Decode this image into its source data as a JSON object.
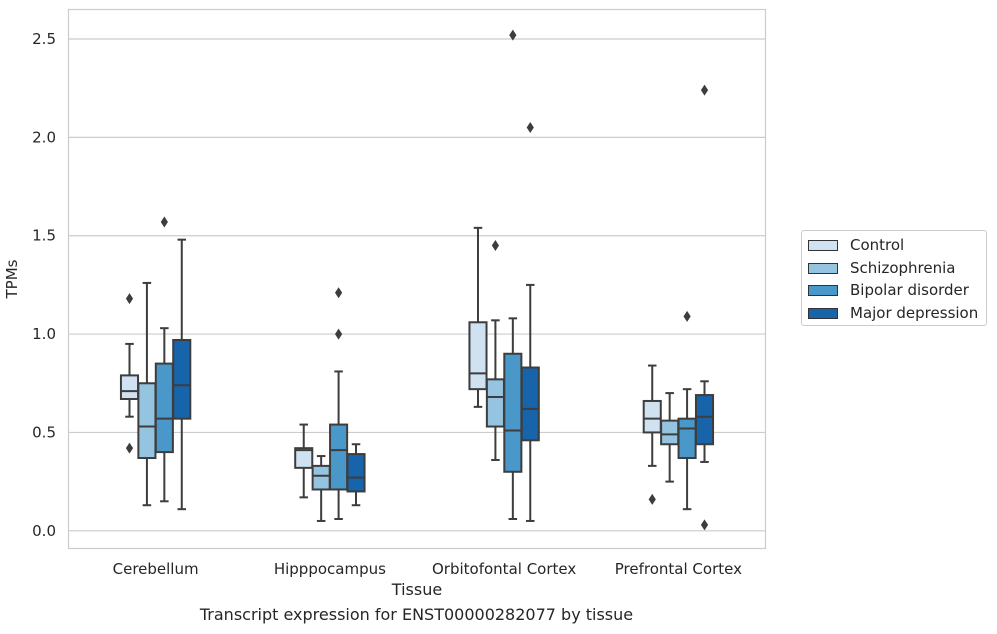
{
  "chart_data": {
    "type": "box",
    "xlabel": "Tissue",
    "ylabel": "TPMs",
    "ylim": [
      -0.09,
      2.65
    ],
    "yticks": [
      "0.0",
      "0.5",
      "1.0",
      "1.5",
      "2.0",
      "2.5"
    ],
    "ytick_values": [
      0.0,
      0.5,
      1.0,
      1.5,
      2.0,
      2.5
    ],
    "grid": "horizontal",
    "categories": [
      "Cerebellum",
      "Hipppocampus",
      "Orbitofontal Cortex",
      "Prefrontal Cortex"
    ],
    "series": [
      {
        "name": "Control",
        "color": "#d0e1f2",
        "boxes": [
          {
            "whislo": 0.58,
            "q1": 0.67,
            "med": 0.71,
            "q3": 0.79,
            "whishi": 0.95,
            "fliers": [
              1.18,
              0.42
            ]
          },
          {
            "whislo": 0.17,
            "q1": 0.32,
            "med": 0.41,
            "q3": 0.42,
            "whishi": 0.54,
            "fliers": []
          },
          {
            "whislo": 0.63,
            "q1": 0.72,
            "med": 0.8,
            "q3": 1.06,
            "whishi": 1.54,
            "fliers": []
          },
          {
            "whislo": 0.33,
            "q1": 0.5,
            "med": 0.57,
            "q3": 0.66,
            "whishi": 0.84,
            "fliers": [
              0.16
            ]
          }
        ]
      },
      {
        "name": "Schizophrenia",
        "color": "#94c4df",
        "boxes": [
          {
            "whislo": 0.13,
            "q1": 0.37,
            "med": 0.53,
            "q3": 0.75,
            "whishi": 1.26,
            "fliers": []
          },
          {
            "whislo": 0.05,
            "q1": 0.21,
            "med": 0.28,
            "q3": 0.33,
            "whishi": 0.38,
            "fliers": []
          },
          {
            "whislo": 0.36,
            "q1": 0.53,
            "med": 0.68,
            "q3": 0.77,
            "whishi": 1.07,
            "fliers": [
              1.45
            ]
          },
          {
            "whislo": 0.25,
            "q1": 0.44,
            "med": 0.49,
            "q3": 0.56,
            "whishi": 0.7,
            "fliers": []
          }
        ]
      },
      {
        "name": "Bipolar disorder",
        "color": "#4a98c9",
        "boxes": [
          {
            "whislo": 0.15,
            "q1": 0.4,
            "med": 0.57,
            "q3": 0.85,
            "whishi": 1.03,
            "fliers": [
              1.57
            ]
          },
          {
            "whislo": 0.06,
            "q1": 0.21,
            "med": 0.41,
            "q3": 0.54,
            "whishi": 0.81,
            "fliers": [
              1.21,
              1.0
            ]
          },
          {
            "whislo": 0.06,
            "q1": 0.3,
            "med": 0.51,
            "q3": 0.9,
            "whishi": 1.08,
            "fliers": [
              2.52
            ]
          },
          {
            "whislo": 0.11,
            "q1": 0.37,
            "med": 0.52,
            "q3": 0.57,
            "whishi": 0.72,
            "fliers": [
              1.09
            ]
          }
        ]
      },
      {
        "name": "Major depression",
        "color": "#1764ab",
        "boxes": [
          {
            "whislo": 0.11,
            "q1": 0.57,
            "med": 0.74,
            "q3": 0.97,
            "whishi": 1.48,
            "fliers": []
          },
          {
            "whislo": 0.13,
            "q1": 0.2,
            "med": 0.27,
            "q3": 0.39,
            "whishi": 0.44,
            "fliers": []
          },
          {
            "whislo": 0.05,
            "q1": 0.46,
            "med": 0.62,
            "q3": 0.83,
            "whishi": 1.25,
            "fliers": [
              2.05
            ]
          },
          {
            "whislo": 0.35,
            "q1": 0.44,
            "med": 0.58,
            "q3": 0.69,
            "whishi": 0.76,
            "fliers": [
              2.24,
              0.03
            ]
          }
        ]
      }
    ],
    "legend_position": "right-center",
    "caption": "Transcript expression for ENST00000282077 by tissue"
  }
}
